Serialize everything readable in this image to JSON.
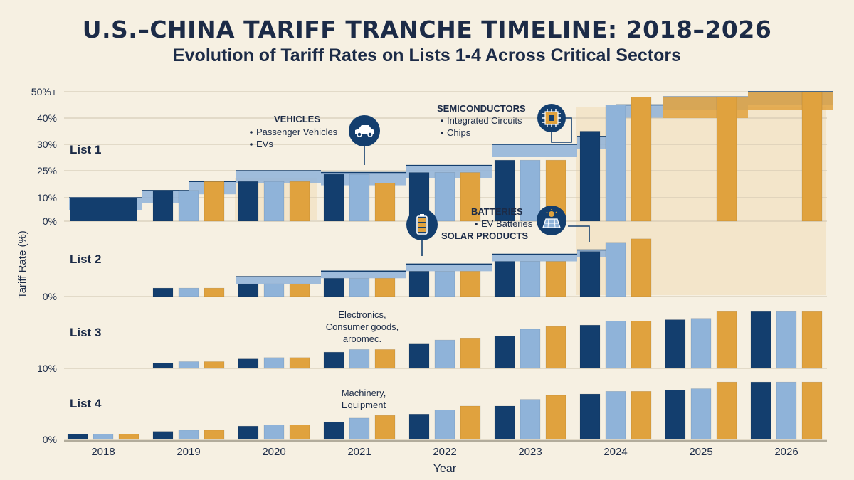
{
  "chart_data": {
    "type": "bar",
    "title": "U.S.–CHINA TARIFF TRANCHE TIMELINE: 2018–2026",
    "subtitle": "Evolution of Tariff Rates on Lists 1-4 Across Critical Sectors",
    "xlabel": "Year",
    "ylabel": "Tariff Rate (%)",
    "categories": [
      "2018",
      "2019",
      "2020",
      "2021",
      "2022",
      "2023",
      "2024",
      "2025",
      "2026"
    ],
    "colors": {
      "navy": "#133e6e",
      "light": "#8fb3d9",
      "gold": "#e0a23e",
      "band_light": "#f1ddb7"
    },
    "panels": [
      {
        "name": "List 1",
        "tick_labels": [
          "0%",
          "10%",
          "25%",
          "30%",
          "40%",
          "50%+"
        ],
        "ylim": [
          0,
          50
        ],
        "steps": [
          {
            "x0": 2017.6,
            "x1": 2018.0,
            "value": 10
          },
          {
            "x0": 2018.0,
            "x1": 2018.45,
            "value": 10
          },
          {
            "x0": 2018.45,
            "x1": 2019.0,
            "value": 14
          },
          {
            "x0": 2019.0,
            "x1": 2019.55,
            "value": 19
          },
          {
            "x0": 2019.55,
            "x1": 2020.55,
            "value": 25
          },
          {
            "x0": 2020.55,
            "x1": 2021.55,
            "value": 24
          },
          {
            "x0": 2021.55,
            "x1": 2022.55,
            "value": 26
          },
          {
            "x0": 2022.55,
            "x1": 2023.55,
            "value": 30
          },
          {
            "x0": 2023.55,
            "x1": 2024.0,
            "value": 33
          },
          {
            "x0": 2024.0,
            "x1": 2024.55,
            "value": 45
          },
          {
            "x0": 2024.55,
            "x1": 2025.55,
            "value": 48
          },
          {
            "x0": 2025.55,
            "x1": 2026.55,
            "value": 50
          }
        ],
        "series": [
          {
            "name": "navy",
            "values": [
              10,
              14,
              19,
              23,
              24,
              27,
              35,
              0,
              0
            ]
          },
          {
            "name": "light",
            "values": [
              0,
              14,
              19,
              23,
              24,
              27,
              45,
              0,
              0
            ]
          },
          {
            "name": "gold",
            "values": [
              0,
              19,
              19,
              18,
              24,
              27,
              48,
              48,
              50
            ]
          }
        ]
      },
      {
        "name": "List 2",
        "tick_labels": [
          "0%"
        ],
        "ylim": [
          0,
          50
        ],
        "series": [
          {
            "name": "navy",
            "values": [
              0,
              6,
              9,
              13,
              18,
              25,
              32,
              0,
              0
            ]
          },
          {
            "name": "light",
            "values": [
              0,
              6,
              9,
              13,
              18,
              25,
              38,
              0,
              0
            ]
          },
          {
            "name": "gold",
            "values": [
              0,
              6,
              9,
              13,
              18,
              25,
              41,
              0,
              0
            ]
          }
        ]
      },
      {
        "name": "List 3",
        "tick_labels": [
          "10%"
        ],
        "ylim": [
          0,
          50
        ],
        "series": [
          {
            "name": "navy",
            "values": [
              0,
              4,
              7,
              12,
              18,
              24,
              32,
              36,
              42
            ]
          },
          {
            "name": "light",
            "values": [
              0,
              5,
              8,
              14,
              21,
              29,
              35,
              37,
              42
            ]
          },
          {
            "name": "gold",
            "values": [
              0,
              5,
              8,
              14,
              22,
              31,
              35,
              42,
              42
            ]
          }
        ]
      },
      {
        "name": "List 4",
        "tick_labels": [
          "0%"
        ],
        "ylim": [
          0,
          50
        ],
        "series": [
          {
            "name": "navy",
            "values": [
              4,
              6,
              10,
              13,
              19,
              25,
              34,
              37,
              43
            ]
          },
          {
            "name": "light",
            "values": [
              4,
              7,
              11,
              16,
              22,
              30,
              36,
              38,
              43
            ]
          },
          {
            "name": "gold",
            "values": [
              4,
              7,
              11,
              18,
              25,
              33,
              36,
              43,
              43
            ]
          }
        ]
      }
    ],
    "annotations": [
      {
        "heading": "VEHICLES",
        "items": [
          "Passenger Vehicles",
          "EVs"
        ],
        "icon": "car-icon"
      },
      {
        "heading": "SEMICONDUCTORS",
        "items": [
          "Integrated Circuits",
          "Chips"
        ],
        "icon": "chip-icon"
      },
      {
        "heading": "BATTERIES",
        "items": [
          "EV Batteries"
        ],
        "icon": "battery-icon"
      },
      {
        "heading": "SOLAR PRODUCTS",
        "items": [],
        "icon": "solar-panel-icon"
      },
      {
        "lines": [
          "Electronics,",
          "Consumer goods,",
          "aroomec."
        ]
      },
      {
        "lines": [
          "Machinery,",
          "Equipment"
        ]
      }
    ]
  }
}
